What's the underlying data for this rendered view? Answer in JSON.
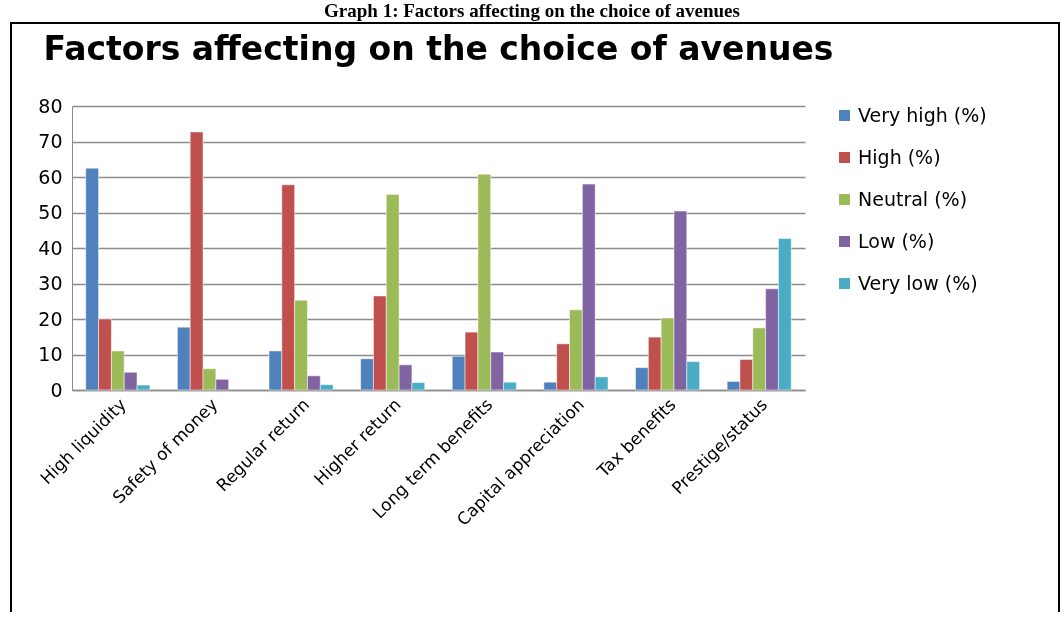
{
  "chart_data": {
    "type": "bar",
    "title": "Factors affecting on the choice of avenues",
    "annotations": [
      "Graph 1: Factors affecting on the choice of avenues"
    ],
    "categories": [
      "High liquidity",
      "Safety of money",
      "Regular return",
      "Higher return",
      "Long term benefits",
      "Capital appreciation",
      "Tax benefits",
      "Prestige/status"
    ],
    "series": [
      {
        "name": "Very high (%)",
        "color": "#4f81bd",
        "values": [
          62.5,
          17.7,
          11.0,
          8.8,
          9.5,
          2.2,
          6.3,
          2.4
        ]
      },
      {
        "name": "High (%)",
        "color": "#c0504d",
        "values": [
          20.0,
          72.7,
          57.8,
          26.5,
          16.3,
          13.0,
          14.9,
          8.6
        ]
      },
      {
        "name": "Neutral (%)",
        "color": "#9bbb59",
        "values": [
          11.0,
          6.0,
          25.3,
          55.1,
          60.8,
          22.6,
          20.3,
          17.5
        ]
      },
      {
        "name": "Low (%)",
        "color": "#8064a2",
        "values": [
          5.0,
          3.0,
          4.0,
          7.1,
          10.7,
          58.0,
          50.4,
          28.5
        ]
      },
      {
        "name": "Very low   (%)",
        "color": "#4bacc6",
        "values": [
          1.4,
          null,
          1.5,
          2.1,
          2.2,
          3.7,
          8.0,
          42.7
        ]
      }
    ],
    "ylim": [
      0,
      80
    ],
    "yticks": [
      0,
      10,
      20,
      30,
      40,
      50,
      60,
      70,
      80
    ],
    "grid": "y",
    "legend": "right"
  }
}
